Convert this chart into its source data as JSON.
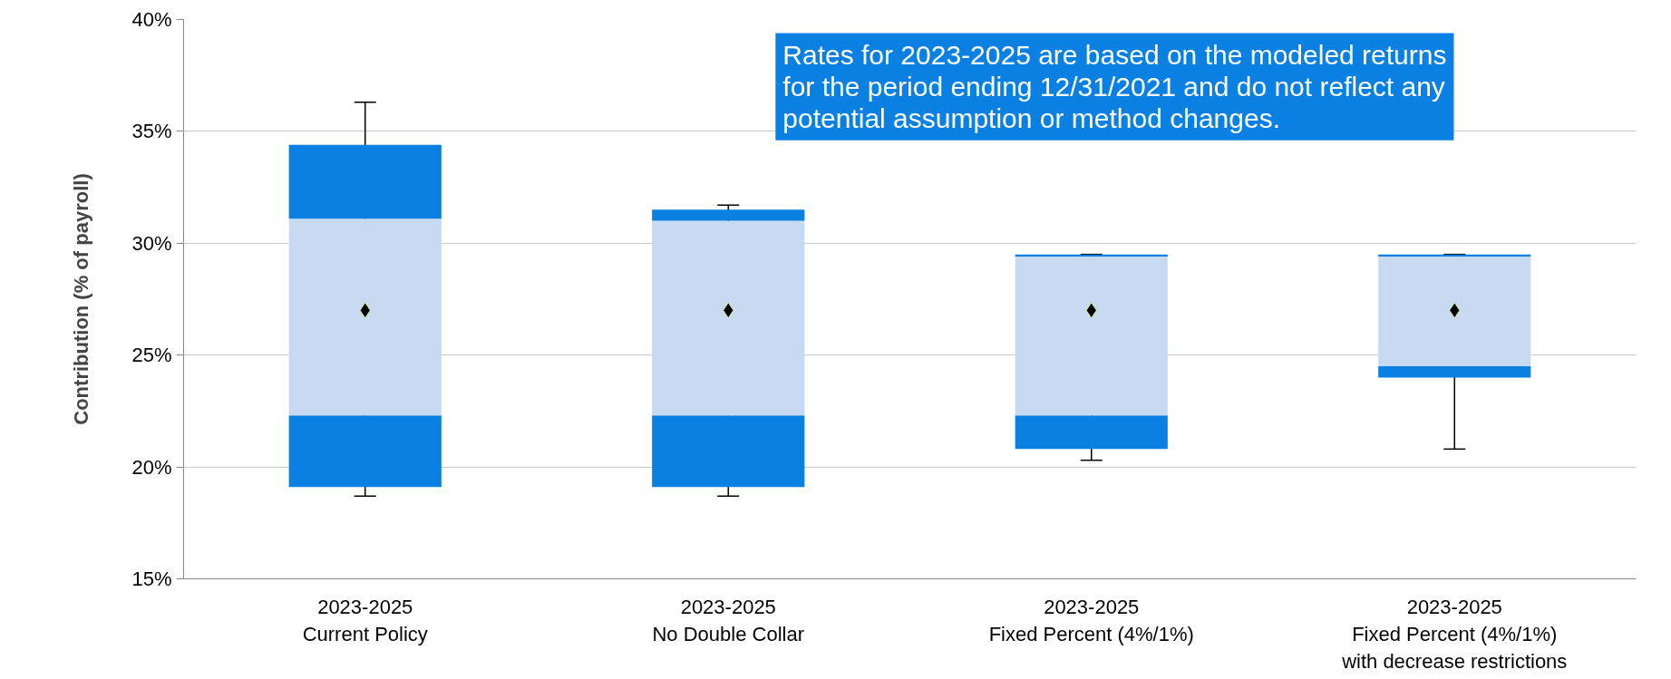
{
  "chart_data": {
    "type": "bar",
    "ylabel": "Contribution (% of payroll)",
    "categories": [
      "2023-2025\nCurrent Policy",
      "2023-2025\nNo Double Collar",
      "2023-2025\nFixed Percent (4%/1%)",
      "2023-2025\nFixed Percent (4%/1%)\nwith decrease restrictions"
    ],
    "series": [
      {
        "color": "#0a80e2",
        "base": [
          19.1,
          19.1,
          20.8,
          24.0
        ],
        "values": [
          3.2,
          3.2,
          1.5,
          0.5
        ]
      },
      {
        "color": "#c8daf1",
        "base": [
          22.3,
          22.3,
          22.3,
          24.5
        ],
        "values": [
          8.8,
          8.7,
          7.1,
          4.9
        ]
      },
      {
        "color": "#0a80e2",
        "base": [
          31.1,
          31.0,
          29.4,
          29.4
        ],
        "values": [
          3.3,
          0.5,
          0.1,
          0.1
        ]
      },
      {
        "type": "scatter",
        "color": "#000000",
        "marker": "diamond",
        "values": [
          27.0,
          27.0,
          27.0,
          27.0
        ],
        "errors": [
          [
            18.7,
            36.3
          ],
          [
            18.7,
            31.7
          ],
          [
            20.3,
            29.5
          ],
          [
            20.8,
            29.5
          ]
        ]
      }
    ],
    "ylim": [
      15,
      40
    ],
    "yticks": [
      {
        "value": 15,
        "label": "15%"
      },
      {
        "value": 20,
        "label": "20%"
      },
      {
        "value": 25,
        "label": "25%"
      },
      {
        "value": 30,
        "label": "30%"
      },
      {
        "value": 35,
        "label": "35%"
      },
      {
        "value": 40,
        "label": "40%"
      }
    ],
    "grid": "y",
    "annotations": [
      "Rates for 2023-2025 are based on the modeled returns\nfor the period ending 12/31/2021 and do not reflect any\npotential assumption or method changes."
    ]
  }
}
